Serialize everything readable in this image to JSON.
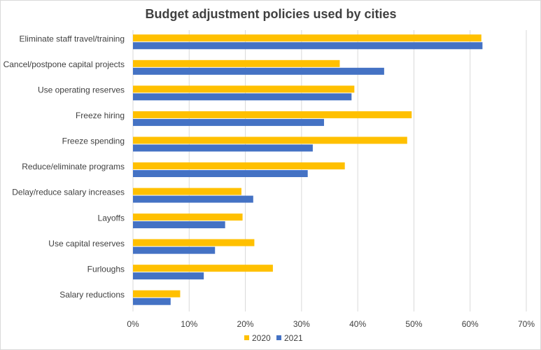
{
  "chart_data": {
    "type": "bar",
    "orientation": "horizontal",
    "title": "Budget adjustment policies used by cities",
    "xlabel": "",
    "ylabel": "",
    "categories": [
      "Eliminate staff travel/training",
      "Cancel/postpone capital projects",
      "Use operating reserves",
      "Freeze hiring",
      "Freeze spending",
      "Reduce/eliminate programs",
      "Delay/reduce salary increases",
      "Layoffs",
      "Use capital reserves",
      "Furloughs",
      "Salary reductions"
    ],
    "series": [
      {
        "name": "2020",
        "color": "#FFC000",
        "values": [
          62,
          36.8,
          39.4,
          49.6,
          48.8,
          37.7,
          19.3,
          19.5,
          21.6,
          24.9,
          8.4
        ]
      },
      {
        "name": "2021",
        "color": "#4472C4",
        "values": [
          62.2,
          44.7,
          38.9,
          34,
          32,
          31.1,
          21.4,
          16.4,
          14.6,
          12.6,
          6.7
        ]
      }
    ],
    "xlim": [
      0,
      70
    ],
    "xticks": [
      "0%",
      "10%",
      "20%",
      "30%",
      "40%",
      "50%",
      "60%",
      "70%"
    ],
    "grid": true,
    "legend_position": "bottom"
  }
}
